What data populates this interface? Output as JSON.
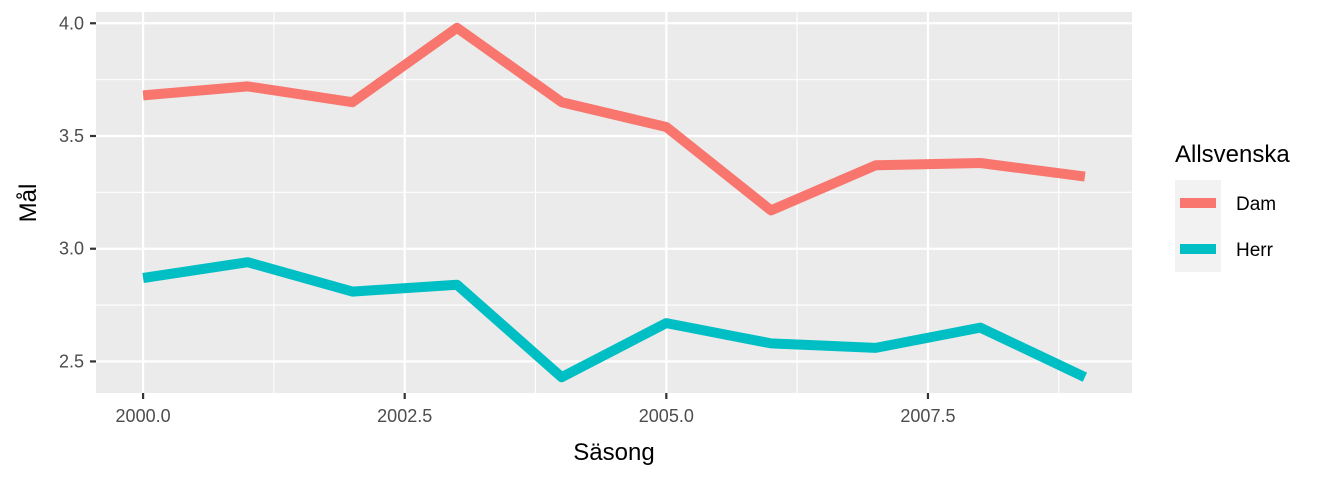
{
  "chart_data": {
    "type": "line",
    "title": "",
    "xlabel": "Säsong",
    "ylabel": "Mål",
    "xlim": [
      1999.55,
      2009.45
    ],
    "ylim": [
      2.36,
      4.05
    ],
    "x_ticks": [
      2000.0,
      2002.5,
      2005.0,
      2007.5
    ],
    "x_tick_labels": [
      "2000.0",
      "2002.5",
      "2005.0",
      "2007.5"
    ],
    "y_ticks": [
      2.5,
      3.0,
      3.5,
      4.0
    ],
    "y_tick_labels": [
      "2.5",
      "3.0",
      "3.5",
      "4.0"
    ],
    "grid": true,
    "legend": {
      "title": "Allsvenska",
      "position": "right"
    },
    "x": [
      2000,
      2001,
      2002,
      2003,
      2004,
      2005,
      2006,
      2007,
      2008,
      2009
    ],
    "series": [
      {
        "name": "Dam",
        "color": "#F8766D",
        "values": [
          3.68,
          3.72,
          3.65,
          3.98,
          3.65,
          3.54,
          3.17,
          3.37,
          3.38,
          3.32
        ]
      },
      {
        "name": "Herr",
        "color": "#00BFC4",
        "values": [
          2.87,
          2.94,
          2.81,
          2.84,
          2.43,
          2.67,
          2.58,
          2.56,
          2.65,
          2.43
        ]
      }
    ]
  }
}
